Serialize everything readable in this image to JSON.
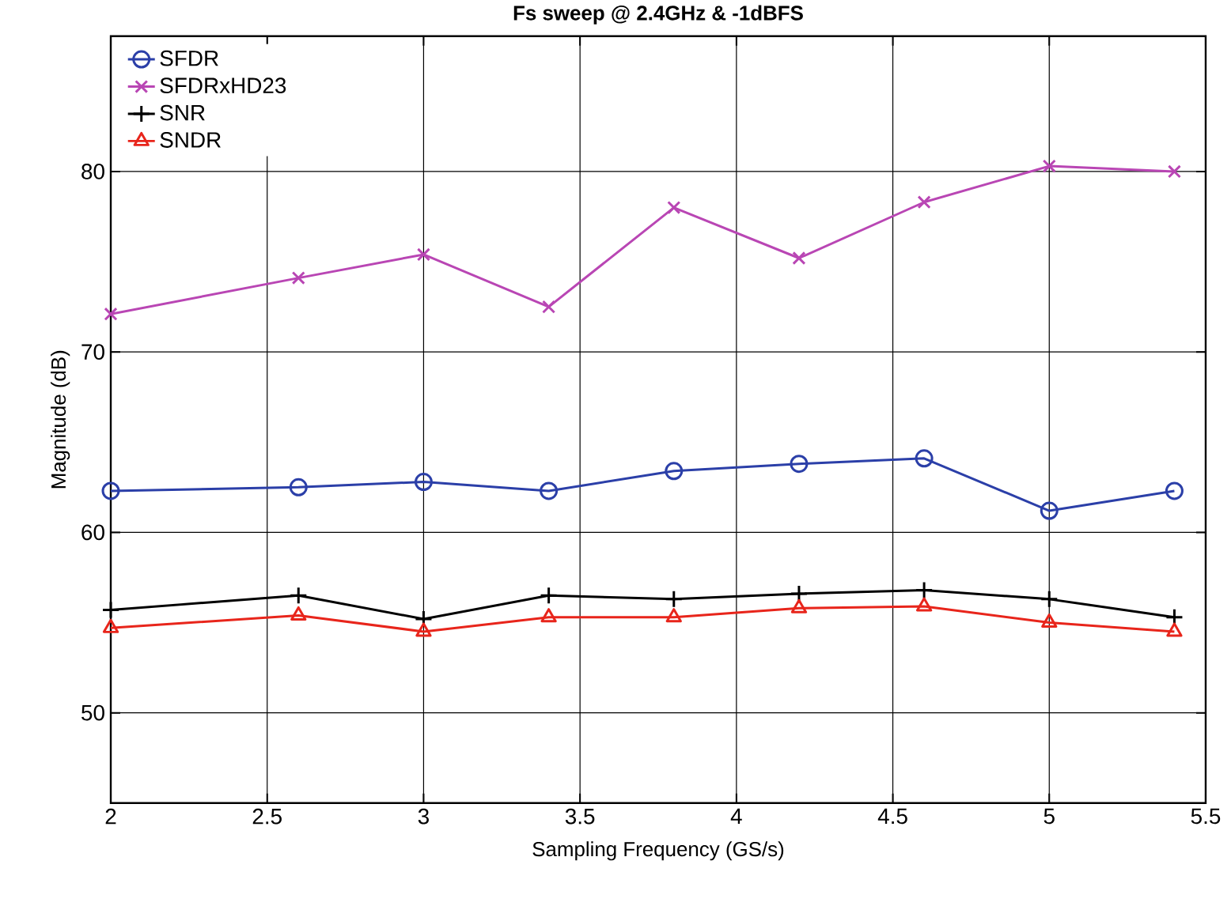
{
  "chart_data": {
    "type": "line",
    "title": "Fs sweep @ 2.4GHz & -1dBFS",
    "xlabel": "Sampling Frequency (GS/s)",
    "ylabel": "Magnitude (dB)",
    "x": [
      2,
      2.6,
      3,
      3.4,
      3.8,
      4.2,
      4.6,
      5,
      5.4
    ],
    "series": [
      {
        "name": "SFDR",
        "color": "#2b3fa8",
        "marker": "circle",
        "values": [
          62.3,
          62.5,
          62.8,
          62.3,
          63.4,
          63.8,
          64.1,
          61.2,
          62.3
        ]
      },
      {
        "name": "SFDRxHD23",
        "color": "#b946b4",
        "marker": "cross",
        "values": [
          72.1,
          74.1,
          75.4,
          72.5,
          78.0,
          75.2,
          78.3,
          80.3,
          80.0
        ]
      },
      {
        "name": "SNR",
        "color": "#000000",
        "marker": "plus",
        "values": [
          55.7,
          56.5,
          55.2,
          56.5,
          56.3,
          56.6,
          56.8,
          56.3,
          55.3
        ]
      },
      {
        "name": "SNDR",
        "color": "#e8251b",
        "marker": "triangle",
        "values": [
          54.7,
          55.4,
          54.5,
          55.3,
          55.3,
          55.8,
          55.9,
          55.0,
          54.5
        ]
      }
    ],
    "xlim": [
      2,
      5.5
    ],
    "ylim": [
      45,
      87.5
    ],
    "xticks": [
      2,
      2.5,
      3,
      3.5,
      4,
      4.5,
      5,
      5.5
    ],
    "yticks": [
      50,
      60,
      70,
      80
    ],
    "grid": true,
    "legend": "top left",
    "line_style": "solid"
  }
}
